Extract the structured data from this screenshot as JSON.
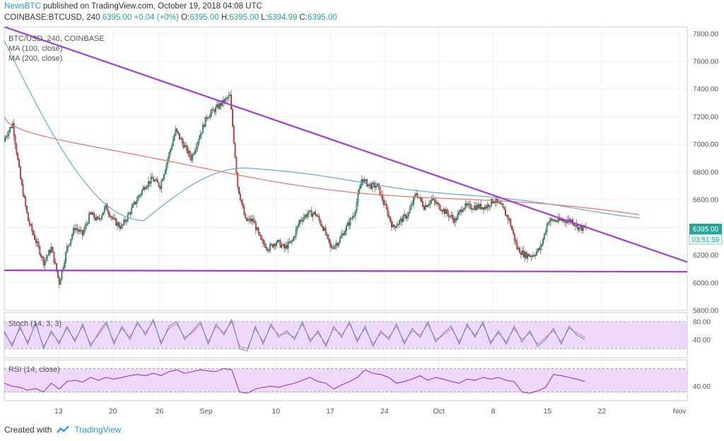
{
  "header": {
    "publisher": "NewsBTC",
    "published_text": "published on TradingView.com, October 19, 2018 04:08 UTC",
    "symbol": "COINBASE:BTCUSD, 240",
    "quote": {
      "last": "6395.00",
      "change": "+0.04 (+0%)",
      "o_label": "O:",
      "o": "6395.00",
      "h_label": "H:",
      "h": "6395.00",
      "l_label": "L:",
      "l": "6394.99",
      "c_label": "C:",
      "c": "6395.00"
    }
  },
  "legend": {
    "main": "BTC/USD, 240, COINBASE",
    "ma100": "MA (100, close)",
    "ma200": "MA (200, close)",
    "stoch": "Stoch (14, 3, 3)",
    "rsi": "RSI (14, close)"
  },
  "price_label": {
    "value": "6395.00",
    "countdown": "03:51:59"
  },
  "footer": {
    "created_with": "Created with",
    "brand": "TradingView"
  },
  "colors": {
    "up": "#26a69a",
    "down": "#ef5350",
    "candle_body_up": "#1e6b35",
    "candle_body_down": "#7a1f1f",
    "ma100": "#64a9dc",
    "ma200": "#f0706b",
    "trendline": "#a33ae0",
    "stoch_k": "#4a90e2",
    "stoch_d": "#f07070",
    "rsi": "#9b30d9",
    "band": "#e8cdf5"
  },
  "chart_data": [
    {
      "type": "candlestick",
      "title": "BTC/USD, 240, COINBASE",
      "ylim": [
        5800,
        7850
      ],
      "y_ticks": [
        "7800.00",
        "7600.00",
        "7400.00",
        "7200.00",
        "7000.00",
        "6800.00",
        "6600.00",
        "6400.00",
        "6200.00",
        "6000.00",
        "5800.00"
      ],
      "x_ticks": [
        "13",
        "20",
        "26",
        "Sep",
        "10",
        "17",
        "24",
        "Oct",
        "8",
        "15",
        "22",
        "Nov"
      ],
      "x_tick_dates": [
        "2018-08-13",
        "2018-08-20",
        "2018-08-26",
        "2018-09-01",
        "2018-09-10",
        "2018-09-17",
        "2018-09-24",
        "2018-10-01",
        "2018-10-08",
        "2018-10-15",
        "2018-10-22",
        "2018-11-01"
      ],
      "x_range": [
        "2018-08-06",
        "2018-11-02"
      ],
      "close_series": {
        "dates": [
          "2018-08-06",
          "2018-08-07",
          "2018-08-08",
          "2018-08-09",
          "2018-08-10",
          "2018-08-11",
          "2018-08-12",
          "2018-08-13",
          "2018-08-14",
          "2018-08-15",
          "2018-08-16",
          "2018-08-17",
          "2018-08-18",
          "2018-08-19",
          "2018-08-20",
          "2018-08-21",
          "2018-08-22",
          "2018-08-23",
          "2018-08-24",
          "2018-08-25",
          "2018-08-26",
          "2018-08-27",
          "2018-08-28",
          "2018-08-29",
          "2018-08-30",
          "2018-08-31",
          "2018-09-01",
          "2018-09-02",
          "2018-09-03",
          "2018-09-04",
          "2018-09-05",
          "2018-09-06",
          "2018-09-07",
          "2018-09-08",
          "2018-09-09",
          "2018-09-10",
          "2018-09-11",
          "2018-09-12",
          "2018-09-13",
          "2018-09-14",
          "2018-09-15",
          "2018-09-16",
          "2018-09-17",
          "2018-09-18",
          "2018-09-19",
          "2018-09-20",
          "2018-09-21",
          "2018-09-22",
          "2018-09-23",
          "2018-09-24",
          "2018-09-25",
          "2018-09-26",
          "2018-09-27",
          "2018-09-28",
          "2018-09-29",
          "2018-09-30",
          "2018-10-01",
          "2018-10-02",
          "2018-10-03",
          "2018-10-04",
          "2018-10-05",
          "2018-10-06",
          "2018-10-07",
          "2018-10-08",
          "2018-10-09",
          "2018-10-10",
          "2018-10-11",
          "2018-10-12",
          "2018-10-13",
          "2018-10-14",
          "2018-10-15",
          "2018-10-16",
          "2018-10-17",
          "2018-10-18",
          "2018-10-19"
        ],
        "close": [
          7050,
          7150,
          6750,
          6450,
          6300,
          6150,
          6250,
          6000,
          6250,
          6400,
          6350,
          6500,
          6450,
          6550,
          6450,
          6400,
          6500,
          6600,
          6700,
          6750,
          6700,
          6900,
          7100,
          7000,
          6900,
          7050,
          7200,
          7250,
          7300,
          7350,
          6700,
          6450,
          6450,
          6300,
          6250,
          6300,
          6250,
          6300,
          6450,
          6500,
          6500,
          6400,
          6250,
          6300,
          6400,
          6500,
          6750,
          6700,
          6700,
          6550,
          6400,
          6450,
          6500,
          6650,
          6550,
          6600,
          6550,
          6500,
          6450,
          6550,
          6550,
          6550,
          6550,
          6600,
          6550,
          6450,
          6250,
          6200,
          6200,
          6250,
          6450,
          6450,
          6450,
          6450,
          6395
        ]
      },
      "indicators": [
        {
          "name": "MA (100, close)",
          "start": 7750,
          "min": 6450,
          "min_date": "2018-08-25",
          "peak": 6830,
          "peak_date": "2018-09-07",
          "end": 6480
        },
        {
          "name": "MA (200, close)",
          "start": 7200,
          "end": 6480
        }
      ],
      "trendlines": [
        {
          "from": [
            "2018-08-06",
            7850
          ],
          "to": [
            "2018-11-02",
            6150
          ]
        },
        {
          "from": [
            "2018-08-06",
            6090
          ],
          "to": [
            "2018-11-02",
            6080
          ]
        }
      ]
    },
    {
      "type": "line",
      "title": "Stoch (14, 3, 3)",
      "ylim": [
        0,
        100
      ],
      "y_ticks": [
        "80.00",
        "40.00"
      ],
      "band": [
        20,
        80
      ],
      "series": [
        {
          "name": "%K",
          "values": [
            60,
            25,
            70,
            30,
            80,
            20,
            60,
            30,
            70,
            35,
            75,
            25,
            55,
            80,
            30,
            70,
            40,
            80,
            50,
            85,
            30,
            70,
            80,
            40,
            60,
            80,
            30,
            75,
            50,
            85,
            20,
            15,
            70,
            30,
            75,
            45,
            60,
            40,
            80,
            35,
            60,
            25,
            70,
            45,
            80,
            35,
            70,
            25,
            60,
            40,
            75,
            30,
            65,
            45,
            80,
            35,
            55,
            70,
            30,
            75,
            45,
            80,
            30,
            60,
            30,
            70,
            35,
            60,
            25,
            40,
            65,
            30,
            70,
            50,
            40
          ]
        },
        {
          "name": "%D",
          "values": [
            55,
            30,
            65,
            35,
            75,
            25,
            55,
            35,
            65,
            40,
            70,
            30,
            50,
            75,
            35,
            65,
            45,
            75,
            55,
            80,
            35,
            65,
            75,
            45,
            55,
            75,
            35,
            70,
            55,
            80,
            25,
            20,
            65,
            35,
            70,
            50,
            55,
            45,
            75,
            40,
            55,
            30,
            65,
            50,
            75,
            40,
            65,
            30,
            55,
            45,
            70,
            35,
            60,
            50,
            75,
            40,
            50,
            65,
            35,
            70,
            50,
            75,
            35,
            55,
            35,
            65,
            40,
            55,
            30,
            45,
            60,
            35,
            65,
            55,
            45
          ]
        }
      ]
    },
    {
      "type": "line",
      "title": "RSI (14, close)",
      "ylim": [
        15,
        85
      ],
      "y_ticks": [
        "40.00"
      ],
      "band": [
        30,
        70
      ],
      "series": [
        {
          "name": "RSI",
          "values": [
            45,
            40,
            38,
            33,
            36,
            30,
            45,
            35,
            48,
            50,
            47,
            55,
            50,
            55,
            52,
            55,
            58,
            60,
            58,
            62,
            58,
            65,
            68,
            62,
            65,
            68,
            66,
            65,
            70,
            68,
            30,
            28,
            35,
            38,
            40,
            38,
            42,
            45,
            50,
            55,
            48,
            45,
            35,
            42,
            48,
            55,
            68,
            62,
            60,
            55,
            45,
            48,
            52,
            58,
            50,
            55,
            52,
            48,
            45,
            52,
            50,
            55,
            52,
            55,
            50,
            48,
            30,
            28,
            32,
            38,
            60,
            58,
            55,
            52,
            48
          ]
        }
      ]
    }
  ]
}
